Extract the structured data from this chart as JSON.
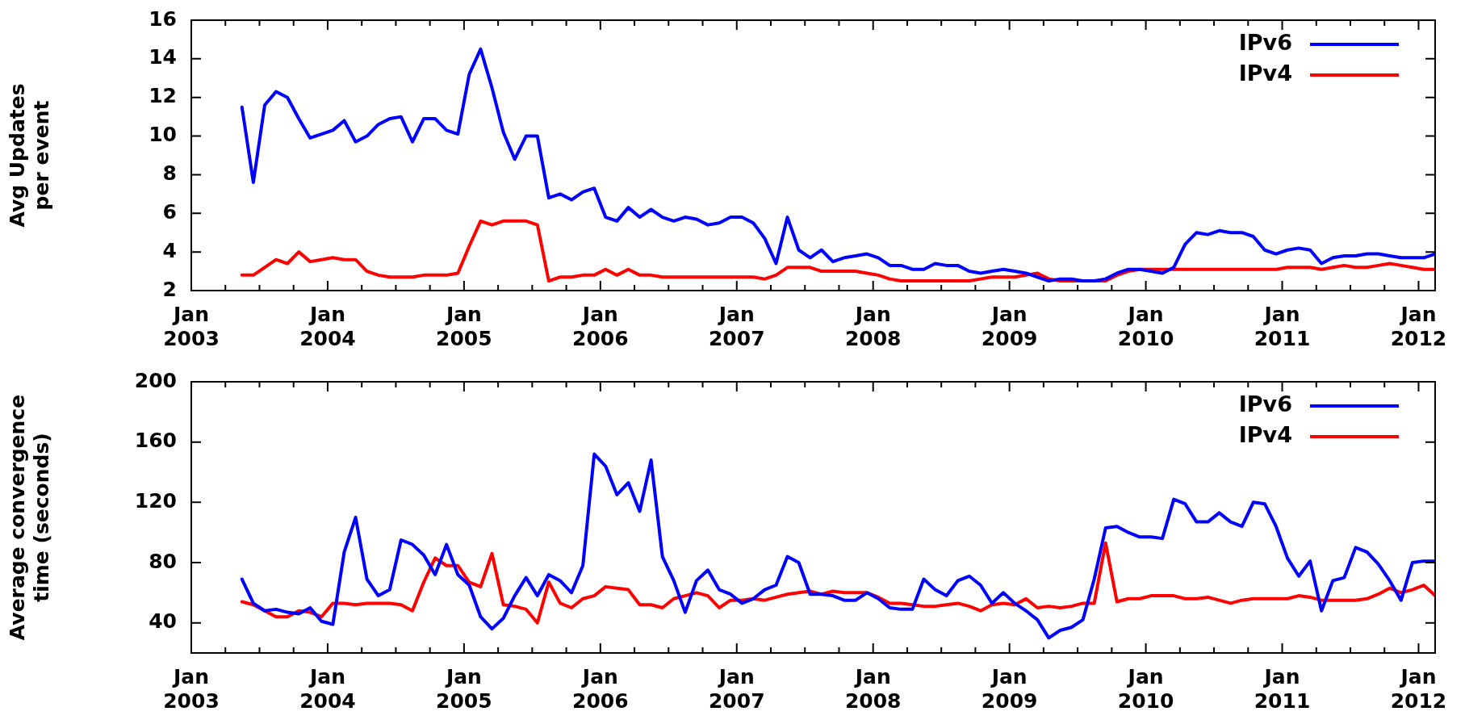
{
  "chart_data": [
    {
      "type": "line",
      "ylabel": "Avg Updates per event",
      "legend": "top right",
      "x": [
        "2003-05-15",
        "2003-06-15",
        "2003-07-15",
        "2003-08-15",
        "2003-09-15",
        "2003-10-15",
        "2003-11-15",
        "2003-12-15",
        "2004-01-15",
        "2004-02-15",
        "2004-03-15",
        "2004-04-15",
        "2004-05-15",
        "2004-06-15",
        "2004-07-15",
        "2004-08-15",
        "2004-09-15",
        "2004-10-15",
        "2004-11-15",
        "2004-12-15",
        "2005-01-15",
        "2005-02-15",
        "2005-03-15",
        "2005-04-15",
        "2005-05-15",
        "2005-06-15",
        "2005-07-15",
        "2005-08-15",
        "2005-09-15",
        "2005-10-15",
        "2005-11-15",
        "2005-12-15",
        "2006-01-15",
        "2006-02-15",
        "2006-03-15",
        "2006-04-15",
        "2006-05-15",
        "2006-06-15",
        "2006-07-15",
        "2006-08-15",
        "2006-09-15",
        "2006-10-15",
        "2006-11-15",
        "2006-12-15",
        "2007-01-15",
        "2007-02-15",
        "2007-03-15",
        "2007-04-15",
        "2007-05-15",
        "2007-06-15",
        "2007-07-15",
        "2007-08-15",
        "2007-09-15",
        "2007-10-15",
        "2007-11-15",
        "2007-12-15",
        "2008-01-15",
        "2008-02-15",
        "2008-03-15",
        "2008-04-15",
        "2008-05-15",
        "2008-06-15",
        "2008-07-15",
        "2008-08-15",
        "2008-09-15",
        "2008-10-15",
        "2008-11-15",
        "2008-12-15",
        "2009-01-15",
        "2009-02-15",
        "2009-03-15",
        "2009-04-15",
        "2009-05-15",
        "2009-06-15",
        "2009-07-15",
        "2009-08-15",
        "2009-09-15",
        "2009-10-15",
        "2009-11-15",
        "2009-12-15",
        "2010-01-15",
        "2010-02-15",
        "2010-03-15",
        "2010-04-15",
        "2010-05-15",
        "2010-06-15",
        "2010-07-15",
        "2010-08-15",
        "2010-09-15",
        "2010-10-15",
        "2010-11-15",
        "2010-12-15",
        "2011-01-15",
        "2011-02-15",
        "2011-03-15",
        "2011-04-15",
        "2011-05-15",
        "2011-06-15",
        "2011-07-15",
        "2011-08-15",
        "2011-09-15",
        "2011-10-15",
        "2011-11-15",
        "2011-12-15",
        "2012-01-15",
        "2012-02-15"
      ],
      "xlim": [
        "2003-01-01",
        "2012-02-15"
      ],
      "xticks": [
        {
          "value": "2003-01-01",
          "label": "Jan 2003"
        },
        {
          "value": "2003-04-01",
          "label": null
        },
        {
          "value": "2003-07-01",
          "label": null
        },
        {
          "value": "2003-10-01",
          "label": null
        },
        {
          "value": "2004-01-01",
          "label": "Jan 2004"
        },
        {
          "value": "2004-04-01",
          "label": null
        },
        {
          "value": "2004-07-01",
          "label": null
        },
        {
          "value": "2004-10-01",
          "label": null
        },
        {
          "value": "2005-01-01",
          "label": "Jan 2005"
        },
        {
          "value": "2005-04-01",
          "label": null
        },
        {
          "value": "2005-07-01",
          "label": null
        },
        {
          "value": "2005-10-01",
          "label": null
        },
        {
          "value": "2006-01-01",
          "label": "Jan 2006"
        },
        {
          "value": "2006-04-01",
          "label": null
        },
        {
          "value": "2006-07-01",
          "label": null
        },
        {
          "value": "2006-10-01",
          "label": null
        },
        {
          "value": "2007-01-01",
          "label": "Jan 2007"
        },
        {
          "value": "2007-04-01",
          "label": null
        },
        {
          "value": "2007-07-01",
          "label": null
        },
        {
          "value": "2007-10-01",
          "label": null
        },
        {
          "value": "2008-01-01",
          "label": "Jan 2008"
        },
        {
          "value": "2008-04-01",
          "label": null
        },
        {
          "value": "2008-07-01",
          "label": null
        },
        {
          "value": "2008-10-01",
          "label": null
        },
        {
          "value": "2009-01-01",
          "label": "Jan 2009"
        },
        {
          "value": "2009-04-01",
          "label": null
        },
        {
          "value": "2009-07-01",
          "label": null
        },
        {
          "value": "2009-10-01",
          "label": null
        },
        {
          "value": "2010-01-01",
          "label": "Jan 2010"
        },
        {
          "value": "2010-04-01",
          "label": null
        },
        {
          "value": "2010-07-01",
          "label": null
        },
        {
          "value": "2010-10-01",
          "label": null
        },
        {
          "value": "2011-01-01",
          "label": "Jan 2011"
        },
        {
          "value": "2011-04-01",
          "label": null
        },
        {
          "value": "2011-07-01",
          "label": null
        },
        {
          "value": "2011-10-01",
          "label": null
        },
        {
          "value": "2012-01-01",
          "label": "Jan 2012"
        }
      ],
      "ylim": [
        2,
        16
      ],
      "yticks": [
        2,
        4,
        6,
        8,
        10,
        12,
        14,
        16
      ],
      "series": [
        {
          "name": "IPv6",
          "color": "#0000ff",
          "values": [
            11.5,
            7.6,
            11.6,
            12.3,
            12.0,
            10.9,
            9.9,
            10.1,
            10.3,
            10.8,
            9.7,
            10.0,
            10.6,
            10.9,
            11.0,
            9.7,
            10.9,
            10.9,
            10.3,
            10.1,
            13.2,
            14.5,
            12.5,
            10.2,
            8.8,
            10.0,
            10.0,
            6.8,
            7.0,
            6.7,
            7.1,
            7.3,
            5.8,
            5.6,
            6.3,
            5.8,
            6.2,
            5.8,
            5.6,
            5.8,
            5.7,
            5.4,
            5.5,
            5.8,
            5.8,
            5.5,
            4.7,
            3.4,
            5.8,
            4.1,
            3.7,
            4.1,
            3.5,
            3.7,
            3.8,
            3.9,
            3.7,
            3.3,
            3.3,
            3.1,
            3.1,
            3.4,
            3.3,
            3.3,
            3.0,
            2.9,
            3.0,
            3.1,
            3.0,
            2.9,
            2.7,
            2.5,
            2.6,
            2.6,
            2.5,
            2.5,
            2.6,
            2.9,
            3.1,
            3.1,
            3.0,
            2.9,
            3.2,
            4.4,
            5.0,
            4.9,
            5.1,
            5.0,
            5.0,
            4.8,
            4.1,
            3.9,
            4.1,
            4.2,
            4.1,
            3.4,
            3.7,
            3.8,
            3.8,
            3.9,
            3.9,
            3.8,
            3.7,
            3.7,
            3.7,
            3.9
          ]
        },
        {
          "name": "IPv4",
          "color": "#ff0000",
          "values": [
            2.8,
            2.8,
            3.2,
            3.6,
            3.4,
            4.0,
            3.5,
            3.6,
            3.7,
            3.6,
            3.6,
            3.0,
            2.8,
            2.7,
            2.7,
            2.7,
            2.8,
            2.8,
            2.8,
            2.9,
            4.3,
            5.6,
            5.4,
            5.6,
            5.6,
            5.6,
            5.4,
            2.5,
            2.7,
            2.7,
            2.8,
            2.8,
            3.1,
            2.8,
            3.1,
            2.8,
            2.8,
            2.7,
            2.7,
            2.7,
            2.7,
            2.7,
            2.7,
            2.7,
            2.7,
            2.7,
            2.6,
            2.8,
            3.2,
            3.2,
            3.2,
            3.0,
            3.0,
            3.0,
            3.0,
            2.9,
            2.8,
            2.6,
            2.5,
            2.5,
            2.5,
            2.5,
            2.5,
            2.5,
            2.5,
            2.6,
            2.7,
            2.7,
            2.7,
            2.8,
            2.9,
            2.6,
            2.5,
            2.5,
            2.5,
            2.5,
            2.5,
            2.8,
            3.0,
            3.1,
            3.1,
            3.1,
            3.1,
            3.1,
            3.1,
            3.1,
            3.1,
            3.1,
            3.1,
            3.1,
            3.1,
            3.1,
            3.2,
            3.2,
            3.2,
            3.1,
            3.2,
            3.3,
            3.2,
            3.2,
            3.3,
            3.4,
            3.3,
            3.2,
            3.1,
            3.1
          ]
        }
      ]
    },
    {
      "type": "line",
      "ylabel": "Average convergence time (seconds)",
      "legend": "top right",
      "x": [
        "2003-05-15",
        "2003-06-15",
        "2003-07-15",
        "2003-08-15",
        "2003-09-15",
        "2003-10-15",
        "2003-11-15",
        "2003-12-15",
        "2004-01-15",
        "2004-02-15",
        "2004-03-15",
        "2004-04-15",
        "2004-05-15",
        "2004-06-15",
        "2004-07-15",
        "2004-08-15",
        "2004-09-15",
        "2004-10-15",
        "2004-11-15",
        "2004-12-15",
        "2005-01-15",
        "2005-02-15",
        "2005-03-15",
        "2005-04-15",
        "2005-05-15",
        "2005-06-15",
        "2005-07-15",
        "2005-08-15",
        "2005-09-15",
        "2005-10-15",
        "2005-11-15",
        "2005-12-15",
        "2006-01-15",
        "2006-02-15",
        "2006-03-15",
        "2006-04-15",
        "2006-05-15",
        "2006-06-15",
        "2006-07-15",
        "2006-08-15",
        "2006-09-15",
        "2006-10-15",
        "2006-11-15",
        "2006-12-15",
        "2007-01-15",
        "2007-02-15",
        "2007-03-15",
        "2007-04-15",
        "2007-05-15",
        "2007-06-15",
        "2007-07-15",
        "2007-08-15",
        "2007-09-15",
        "2007-10-15",
        "2007-11-15",
        "2007-12-15",
        "2008-01-15",
        "2008-02-15",
        "2008-03-15",
        "2008-04-15",
        "2008-05-15",
        "2008-06-15",
        "2008-07-15",
        "2008-08-15",
        "2008-09-15",
        "2008-10-15",
        "2008-11-15",
        "2008-12-15",
        "2009-01-15",
        "2009-02-15",
        "2009-03-15",
        "2009-04-15",
        "2009-05-15",
        "2009-06-15",
        "2009-07-15",
        "2009-08-15",
        "2009-09-15",
        "2009-10-15",
        "2009-11-15",
        "2009-12-15",
        "2010-01-15",
        "2010-02-15",
        "2010-03-15",
        "2010-04-15",
        "2010-05-15",
        "2010-06-15",
        "2010-07-15",
        "2010-08-15",
        "2010-09-15",
        "2010-10-15",
        "2010-11-15",
        "2010-12-15",
        "2011-01-15",
        "2011-02-15",
        "2011-03-15",
        "2011-04-15",
        "2011-05-15",
        "2011-06-15",
        "2011-07-15",
        "2011-08-15",
        "2011-09-15",
        "2011-10-15",
        "2011-11-15",
        "2011-12-15",
        "2012-01-15",
        "2012-02-15"
      ],
      "xlim": [
        "2003-01-01",
        "2012-02-15"
      ],
      "xticks": [
        {
          "value": "2003-01-01",
          "label": "Jan 2003"
        },
        {
          "value": "2003-04-01",
          "label": null
        },
        {
          "value": "2003-07-01",
          "label": null
        },
        {
          "value": "2003-10-01",
          "label": null
        },
        {
          "value": "2004-01-01",
          "label": "Jan 2004"
        },
        {
          "value": "2004-04-01",
          "label": null
        },
        {
          "value": "2004-07-01",
          "label": null
        },
        {
          "value": "2004-10-01",
          "label": null
        },
        {
          "value": "2005-01-01",
          "label": "Jan 2005"
        },
        {
          "value": "2005-04-01",
          "label": null
        },
        {
          "value": "2005-07-01",
          "label": null
        },
        {
          "value": "2005-10-01",
          "label": null
        },
        {
          "value": "2006-01-01",
          "label": "Jan 2006"
        },
        {
          "value": "2006-04-01",
          "label": null
        },
        {
          "value": "2006-07-01",
          "label": null
        },
        {
          "value": "2006-10-01",
          "label": null
        },
        {
          "value": "2007-01-01",
          "label": "Jan 2007"
        },
        {
          "value": "2007-04-01",
          "label": null
        },
        {
          "value": "2007-07-01",
          "label": null
        },
        {
          "value": "2007-10-01",
          "label": null
        },
        {
          "value": "2008-01-01",
          "label": "Jan 2008"
        },
        {
          "value": "2008-04-01",
          "label": null
        },
        {
          "value": "2008-07-01",
          "label": null
        },
        {
          "value": "2008-10-01",
          "label": null
        },
        {
          "value": "2009-01-01",
          "label": "Jan 2009"
        },
        {
          "value": "2009-04-01",
          "label": null
        },
        {
          "value": "2009-07-01",
          "label": null
        },
        {
          "value": "2009-10-01",
          "label": null
        },
        {
          "value": "2010-01-01",
          "label": "Jan 2010"
        },
        {
          "value": "2010-04-01",
          "label": null
        },
        {
          "value": "2010-07-01",
          "label": null
        },
        {
          "value": "2010-10-01",
          "label": null
        },
        {
          "value": "2011-01-01",
          "label": "Jan 2011"
        },
        {
          "value": "2011-04-01",
          "label": null
        },
        {
          "value": "2011-07-01",
          "label": null
        },
        {
          "value": "2011-10-01",
          "label": null
        },
        {
          "value": "2012-01-01",
          "label": "Jan 2012"
        }
      ],
      "ylim": [
        20,
        200
      ],
      "yticks": [
        40,
        80,
        120,
        160,
        200
      ],
      "series": [
        {
          "name": "IPv6",
          "color": "#0000ff",
          "values": [
            69,
            53,
            48,
            49,
            47,
            46,
            50,
            41,
            39,
            87,
            110,
            69,
            58,
            62,
            95,
            92,
            85,
            72,
            92,
            72,
            65,
            44,
            36,
            43,
            58,
            70,
            58,
            72,
            68,
            60,
            78,
            152,
            144,
            125,
            133,
            114,
            148,
            84,
            68,
            47,
            68,
            75,
            62,
            59,
            53,
            56,
            62,
            65,
            84,
            80,
            59,
            59,
            58,
            55,
            55,
            60,
            56,
            50,
            49,
            49,
            69,
            62,
            58,
            68,
            71,
            65,
            53,
            60,
            53,
            48,
            42,
            30,
            35,
            37,
            42,
            69,
            103,
            104,
            100,
            97,
            97,
            96,
            122,
            119,
            107,
            107,
            113,
            107,
            104,
            120,
            119,
            104,
            83,
            71,
            81,
            48,
            68,
            70,
            90,
            87,
            79,
            68,
            55,
            80,
            81,
            81
          ]
        },
        {
          "name": "IPv4",
          "color": "#ff0000",
          "values": [
            54,
            52,
            48,
            44,
            44,
            48,
            47,
            44,
            53,
            53,
            52,
            53,
            53,
            53,
            52,
            48,
            67,
            83,
            78,
            78,
            67,
            64,
            86,
            52,
            51,
            49,
            40,
            67,
            53,
            50,
            56,
            58,
            64,
            63,
            62,
            52,
            52,
            50,
            56,
            58,
            60,
            58,
            50,
            55,
            55,
            56,
            55,
            57,
            59,
            60,
            61,
            59,
            61,
            60,
            60,
            60,
            57,
            53,
            53,
            52,
            51,
            51,
            52,
            53,
            51,
            48,
            52,
            53,
            52,
            56,
            50,
            51,
            50,
            51,
            53,
            53,
            93,
            54,
            56,
            56,
            58,
            58,
            58,
            56,
            56,
            57,
            55,
            53,
            55,
            56,
            56,
            56,
            56,
            58,
            57,
            55,
            55,
            55,
            55,
            56,
            59,
            63,
            60,
            62,
            65,
            58
          ]
        }
      ]
    }
  ]
}
